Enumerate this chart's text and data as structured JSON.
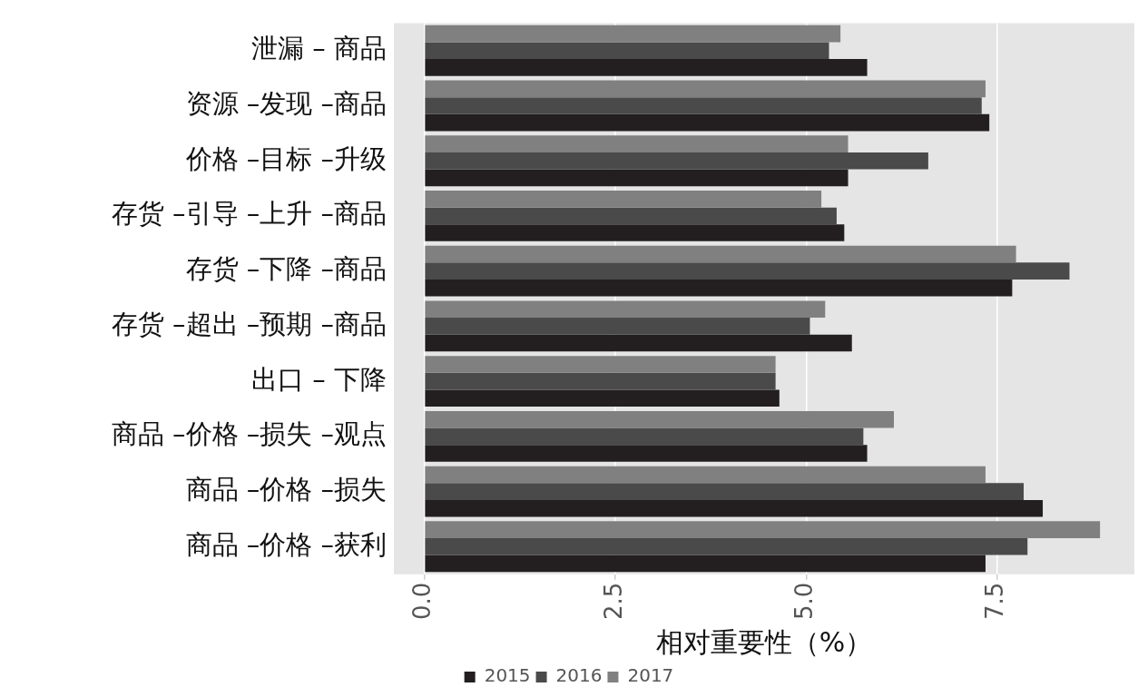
{
  "chart_data": {
    "type": "bar",
    "orientation": "horizontal",
    "xlabel": "相对重要性（%）",
    "categories": [
      "泄漏 – 商品",
      "资源 –发现 –商品",
      "价格 –目标 –升级",
      "存货 –引导 –上升 –商品",
      "存货 –下降 –商品",
      "存货 –超出 –预期 –商品",
      "出口 – 下降",
      "商品 –价格 –损失 –观点",
      "商品 –价格 –损失",
      "商品 –价格 –获利"
    ],
    "series": [
      {
        "name": "2015",
        "color": "#231f20",
        "values": [
          5.8,
          7.4,
          5.55,
          5.5,
          7.7,
          5.6,
          4.65,
          5.8,
          8.1,
          7.35
        ]
      },
      {
        "name": "2016",
        "color": "#4a4a4a",
        "values": [
          5.3,
          7.3,
          6.6,
          5.4,
          8.45,
          5.05,
          4.6,
          5.75,
          7.85,
          7.9
        ]
      },
      {
        "name": "2017",
        "color": "#808080",
        "values": [
          5.45,
          7.35,
          5.55,
          5.2,
          7.75,
          5.25,
          4.6,
          6.15,
          7.35,
          8.85
        ]
      }
    ],
    "xlim": [
      -0.4,
      9.3
    ],
    "xticks": [
      {
        "value": 0,
        "label": "0.0"
      },
      2.5,
      {
        "value": 5,
        "label": "5.0"
      },
      7.5
    ],
    "grid": "x",
    "legend": "bottom"
  }
}
